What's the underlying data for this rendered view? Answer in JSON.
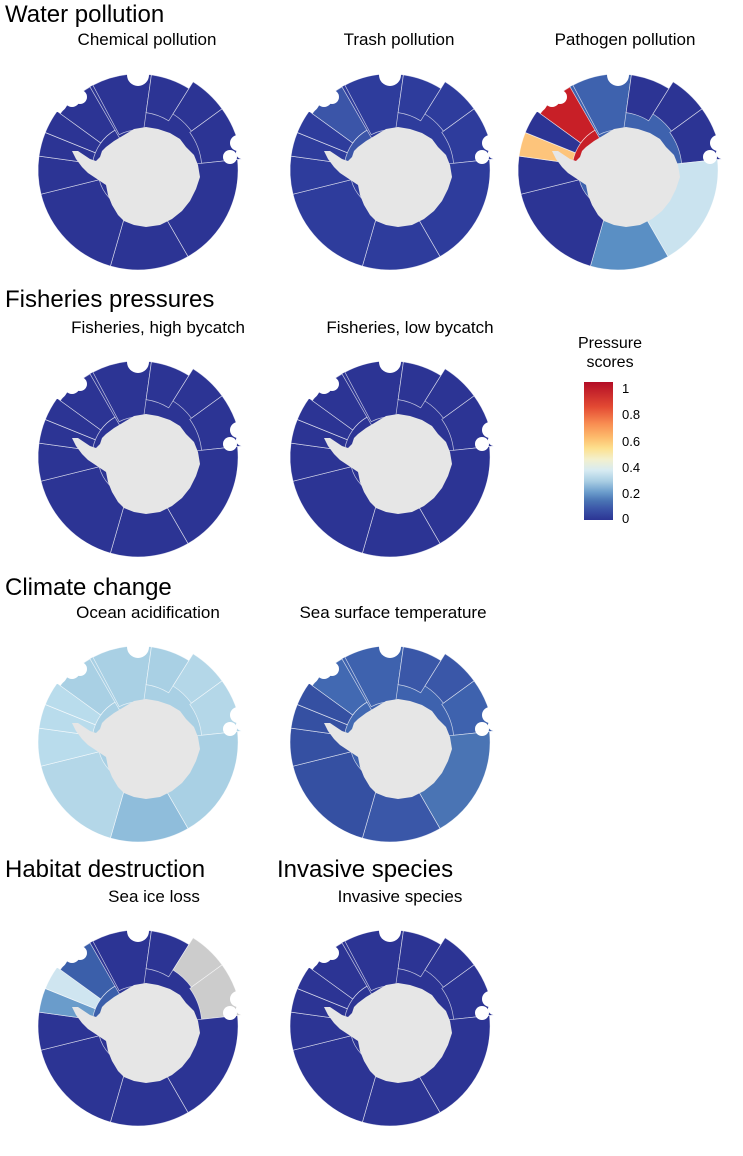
{
  "sections": {
    "water_pollution": "Water pollution",
    "fisheries": "Fisheries pressures",
    "climate": "Climate change",
    "habitat": "Habitat destruction",
    "invasive": "Invasive species"
  },
  "maps": [
    {
      "title": "Chemical pollution",
      "colors": [
        "#2c3494",
        "#2c3494",
        "#2c3494",
        "#2c3494",
        "#2c3494",
        "#2c3494",
        "#2c3494",
        "#2c3494",
        "#2c3494",
        "#2c3494",
        "#2c3494",
        "#2c3494"
      ]
    },
    {
      "title": "Trash pollution",
      "colors": [
        "#2e3c9c",
        "#2e3c9c",
        "#2e3c9c",
        "#2e3c9c",
        "#2e3c9c",
        "#2e3c9c",
        "#2e3c9c",
        "#2e3c9c",
        "#2e3c9c",
        "#2e3c9c",
        "#3b55a8",
        "#4a74b4"
      ]
    },
    {
      "title": "Pathogen pollution",
      "colors": [
        "#3e62ae",
        "#2c3494",
        "#2c3494",
        "#2c3494",
        "#cae3ef",
        "#5a8fc4",
        "#2c3494",
        "#2c3494",
        "#fdc47b",
        "#2c3494",
        "#c81f27",
        "#2c3494"
      ]
    },
    {
      "title": "Fisheries, high bycatch",
      "colors": [
        "#2c3494",
        "#2c3494",
        "#2c3494",
        "#2c3494",
        "#2c3494",
        "#2c3494",
        "#2c3494",
        "#2c3494",
        "#2c3494",
        "#2c3494",
        "#2c3494",
        "#2c3494"
      ]
    },
    {
      "title": "Fisheries, low bycatch",
      "colors": [
        "#2c3494",
        "#2c3494",
        "#2c3494",
        "#2c3494",
        "#2c3494",
        "#2c3494",
        "#2c3494",
        "#2c3494",
        "#2c3494",
        "#2c3494",
        "#2c3494",
        "#2c3494"
      ]
    },
    {
      "title": "Ocean acidification",
      "colors": [
        "#a9d0e4",
        "#a9d0e4",
        "#b4d7e8",
        "#b4d7e8",
        "#a9d0e4",
        "#8fbddb",
        "#b4d7e8",
        "#b9dcec",
        "#b9dcec",
        "#b9dcec",
        "#a9d0e4",
        "#6e9fcc"
      ]
    },
    {
      "title": "Sea surface temperature",
      "colors": [
        "#3e62ae",
        "#3a57a8",
        "#3a57a8",
        "#3e62ae",
        "#4a74b4",
        "#3a57a8",
        "#3550a2",
        "#3550a2",
        "#3550a2",
        "#3550a2",
        "#4269b2",
        "#2c3494"
      ]
    },
    {
      "title": "Sea ice loss",
      "colors": [
        "#2c3494",
        "#2c3494",
        "#cccccc",
        "#cccccc",
        "#2c3494",
        "#2c3494",
        "#2c3494",
        "#2c3494",
        "#6a9ccb",
        "#cfe5f0",
        "#3b5faa",
        "#2c3494"
      ]
    },
    {
      "title": "Invasive species",
      "colors": [
        "#2c3494",
        "#2c3494",
        "#2c3494",
        "#2c3494",
        "#2c3494",
        "#2c3494",
        "#2c3494",
        "#2c3494",
        "#2c3494",
        "#2c3494",
        "#2c3494",
        "#2c3494"
      ]
    }
  ],
  "legend": {
    "title": "Pressure scores",
    "ticks": [
      "1",
      "0.8",
      "0.6",
      "0.4",
      "0.2",
      "0"
    ]
  }
}
